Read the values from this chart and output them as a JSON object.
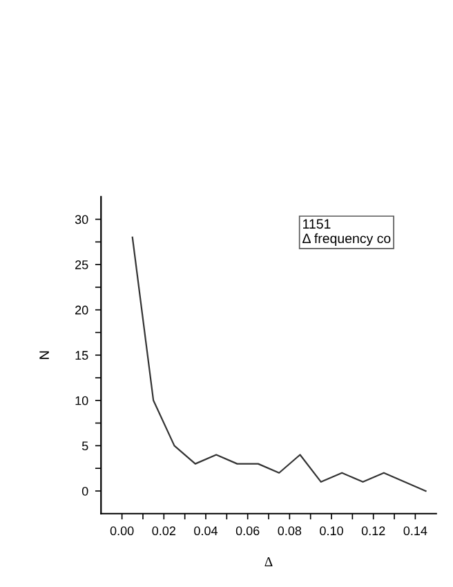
{
  "chart_data": {
    "type": "line",
    "xlabel": "Δ",
    "ylabel": "N",
    "x": [
      0.005,
      0.015,
      0.025,
      0.035,
      0.045,
      0.055,
      0.065,
      0.075,
      0.085,
      0.095,
      0.105,
      0.115,
      0.125,
      0.145
    ],
    "series": [
      {
        "color": "#333333",
        "values": [
          28,
          10,
          5,
          3,
          4,
          3,
          3,
          2,
          4,
          1,
          2,
          1,
          2,
          0
        ]
      }
    ],
    "xlim": [
      -0.01,
      0.15
    ],
    "ylim": [
      -2.5,
      32.5
    ],
    "xticks": [
      {
        "value": 0.0,
        "label": "0.00"
      },
      {
        "value": 0.01,
        "label": null
      },
      {
        "value": 0.02,
        "label": "0.02"
      },
      {
        "value": 0.03,
        "label": null
      },
      {
        "value": 0.04,
        "label": "0.04"
      },
      {
        "value": 0.05,
        "label": null
      },
      {
        "value": 0.06,
        "label": "0.06"
      },
      {
        "value": 0.07,
        "label": null
      },
      {
        "value": 0.08,
        "label": "0.08"
      },
      {
        "value": 0.09,
        "label": null
      },
      {
        "value": 0.1,
        "label": "0.10"
      },
      {
        "value": 0.11,
        "label": null
      },
      {
        "value": 0.12,
        "label": "0.12"
      },
      {
        "value": 0.13,
        "label": null
      },
      {
        "value": 0.14,
        "label": "0.14"
      }
    ],
    "yticks": [
      0,
      {
        "value": 2.5,
        "label": null
      },
      5,
      {
        "value": 7.5,
        "label": null
      },
      10,
      {
        "value": 12.5,
        "label": null
      },
      15,
      {
        "value": 17.5,
        "label": null
      },
      20,
      {
        "value": 22.5,
        "label": null
      },
      25,
      {
        "value": 27.5,
        "label": null
      },
      30
    ],
    "annotations": [
      "1151",
      "Δ frequency co"
    ],
    "grid": false,
    "legend": false
  }
}
